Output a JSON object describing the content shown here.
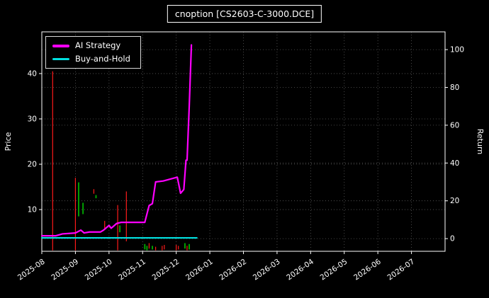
{
  "figure": {
    "background": "#000000"
  },
  "chart_data": {
    "type": "line",
    "title": "cnoption [CS2603-C-3000.DCE]",
    "x_ticks": [
      "2025-08",
      "2025-09",
      "2025-10",
      "2025-11",
      "2025-12",
      "2026-01",
      "2026-02",
      "2026-03",
      "2026-04",
      "2026-05",
      "2026-06",
      "2026-07"
    ],
    "x_range": [
      "2025-08-01",
      "2026-08-01"
    ],
    "left_axis": {
      "label": "Price",
      "ticks": [
        10,
        20,
        30,
        40
      ],
      "range": [
        0.8,
        49.2
      ]
    },
    "right_axis": {
      "label": "Return",
      "ticks": [
        0,
        20,
        40,
        60,
        80,
        100
      ],
      "range": [
        -6.7,
        109.4
      ]
    },
    "grid": true,
    "legend_position": "upper-left",
    "colors": {
      "up": "#00a000",
      "down": "#ff1a1a",
      "grid": "#5a5a5a",
      "frame": "#ffffff",
      "text": "#ffffff",
      "background": "#000000"
    },
    "series": [
      {
        "name": "AI Strategy",
        "axis": "return",
        "color": "#ff00ff",
        "points": [
          [
            "2025-08-01",
            1.5
          ],
          [
            "2025-08-14",
            1.5
          ],
          [
            "2025-08-20",
            2.5
          ],
          [
            "2025-09-01",
            3.0
          ],
          [
            "2025-09-06",
            4.5
          ],
          [
            "2025-09-09",
            3.0
          ],
          [
            "2025-09-14",
            3.5
          ],
          [
            "2025-09-24",
            3.5
          ],
          [
            "2025-09-27",
            4.5
          ],
          [
            "2025-10-01",
            7.0
          ],
          [
            "2025-10-03",
            5.5
          ],
          [
            "2025-10-08",
            8.0
          ],
          [
            "2025-10-12",
            8.6
          ],
          [
            "2025-11-03",
            8.6
          ],
          [
            "2025-11-07",
            17.5
          ],
          [
            "2025-11-10",
            18.5
          ],
          [
            "2025-11-13",
            30.0
          ],
          [
            "2025-11-20",
            30.5
          ],
          [
            "2025-12-02",
            32.5
          ],
          [
            "2025-12-05",
            24.0
          ],
          [
            "2025-12-08",
            26.0
          ],
          [
            "2025-12-10",
            41.5
          ],
          [
            "2025-12-11",
            41.5
          ],
          [
            "2025-12-13",
            70.0
          ],
          [
            "2025-12-15",
            102.5
          ]
        ]
      },
      {
        "name": "Buy-and-Hold",
        "axis": "return",
        "color": "#00e0e0",
        "points": [
          [
            "2025-08-01",
            0.4
          ],
          [
            "2025-12-20",
            0.4
          ]
        ]
      }
    ],
    "price_bars": [
      {
        "date": "2025-08-11",
        "low": 1.0,
        "high": 40.5,
        "dir": "down"
      },
      {
        "date": "2025-09-01",
        "low": 1.0,
        "high": 17.0,
        "dir": "down"
      },
      {
        "date": "2025-09-04",
        "low": 8.5,
        "high": 16.0,
        "dir": "up"
      },
      {
        "date": "2025-09-08",
        "low": 9.0,
        "high": 11.5,
        "dir": "up"
      },
      {
        "date": "2025-09-18",
        "low": 13.5,
        "high": 14.5,
        "dir": "down"
      },
      {
        "date": "2025-09-20",
        "low": 12.5,
        "high": 13.2,
        "dir": "up"
      },
      {
        "date": "2025-09-28",
        "low": 5.5,
        "high": 7.5,
        "dir": "down"
      },
      {
        "date": "2025-10-09",
        "low": 1.0,
        "high": 11.0,
        "dir": "down"
      },
      {
        "date": "2025-10-11",
        "low": 5.0,
        "high": 6.5,
        "dir": "up"
      },
      {
        "date": "2025-10-17",
        "low": 3.0,
        "high": 14.0,
        "dir": "down"
      },
      {
        "date": "2025-11-03",
        "low": 1.2,
        "high": 2.4,
        "dir": "up"
      },
      {
        "date": "2025-11-05",
        "low": 1.0,
        "high": 2.0,
        "dir": "up"
      },
      {
        "date": "2025-11-07",
        "low": 1.4,
        "high": 2.6,
        "dir": "down"
      },
      {
        "date": "2025-11-10",
        "low": 1.2,
        "high": 2.0,
        "dir": "up"
      },
      {
        "date": "2025-11-13",
        "low": 1.0,
        "high": 1.8,
        "dir": "down"
      },
      {
        "date": "2025-11-19",
        "low": 1.0,
        "high": 2.0,
        "dir": "down"
      },
      {
        "date": "2025-11-21",
        "low": 1.2,
        "high": 2.2,
        "dir": "down"
      },
      {
        "date": "2025-12-01",
        "low": 1.0,
        "high": 2.2,
        "dir": "down"
      },
      {
        "date": "2025-12-03",
        "low": 1.2,
        "high": 2.0,
        "dir": "down"
      },
      {
        "date": "2025-12-09",
        "low": 1.4,
        "high": 2.6,
        "dir": "up"
      },
      {
        "date": "2025-12-11",
        "low": 1.0,
        "high": 2.0,
        "dir": "down"
      },
      {
        "date": "2025-12-13",
        "low": 1.2,
        "high": 2.4,
        "dir": "up"
      }
    ]
  }
}
